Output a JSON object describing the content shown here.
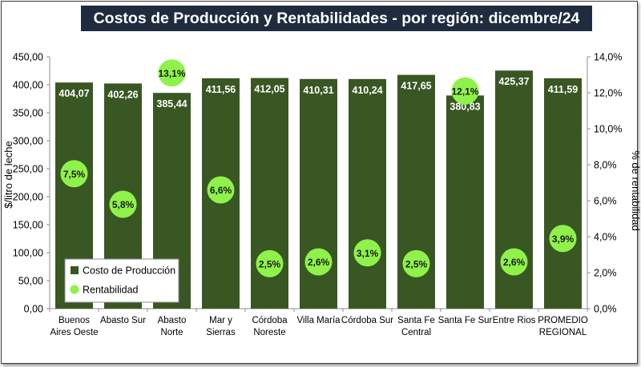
{
  "chart_data": {
    "type": "bar+scatter",
    "title": "Costos de Producción y Rentabilidades - por región: dicembre/24",
    "categories": [
      [
        "Buenos",
        "Aires Oeste"
      ],
      [
        "Abasto Sur"
      ],
      [
        "Abasto",
        "Norte"
      ],
      [
        "Mar y",
        "Sierras"
      ],
      [
        "Córdoba",
        "Noreste"
      ],
      [
        "Villa María"
      ],
      [
        "Córdoba Sur"
      ],
      [
        "Santa Fe",
        "Central"
      ],
      [
        "Santa Fe Sur"
      ],
      [
        "Entre Rios"
      ],
      [
        "PROMEDIO",
        "REGIONAL"
      ]
    ],
    "series": [
      {
        "name": "Costo de Producción",
        "type": "bar",
        "axis": "left",
        "values": [
          404.07,
          402.26,
          385.44,
          411.56,
          412.05,
          410.31,
          410.24,
          417.65,
          380.83,
          425.37,
          411.59
        ],
        "labels": [
          "404,07",
          "402,26",
          "385,44",
          "411,56",
          "412,05",
          "410,31",
          "410,24",
          "417,65",
          "380,83",
          "425,37",
          "411,59"
        ],
        "color": "#385723"
      },
      {
        "name": "Rentabilidad",
        "type": "scatter",
        "axis": "right",
        "values": [
          7.5,
          5.8,
          13.1,
          6.6,
          2.5,
          2.6,
          3.1,
          2.5,
          12.1,
          2.6,
          3.9
        ],
        "labels": [
          "7,5%",
          "5,8%",
          "13,1%",
          "6,6%",
          "2,5%",
          "2,6%",
          "3,1%",
          "2,5%",
          "12,1%",
          "2,6%",
          "3,9%"
        ],
        "color": "#8ff24a"
      }
    ],
    "ylabel": "$/litro de leche",
    "y2label": "% de rentabilidad",
    "ylim": [
      0,
      450
    ],
    "y2lim": [
      0,
      14
    ],
    "yticks": [
      0,
      50,
      100,
      150,
      200,
      250,
      300,
      350,
      400,
      450
    ],
    "ytick_labels": [
      "0,00",
      "50,00",
      "100,00",
      "150,00",
      "200,00",
      "250,00",
      "300,00",
      "350,00",
      "400,00",
      "450,00"
    ],
    "y2ticks": [
      0,
      2,
      4,
      6,
      8,
      10,
      12,
      14
    ],
    "y2tick_labels": [
      "0,0%",
      "2,0%",
      "4,0%",
      "6,0%",
      "8,0%",
      "10,0%",
      "12,0%",
      "14,0%"
    ],
    "legend": {
      "position": "bottom-left",
      "items": [
        {
          "label": "Costo de Producción",
          "marker": "square",
          "color": "#385723"
        },
        {
          "label": "Rentabilidad",
          "marker": "circle",
          "color": "#8ff24a"
        }
      ]
    },
    "grid": false
  }
}
